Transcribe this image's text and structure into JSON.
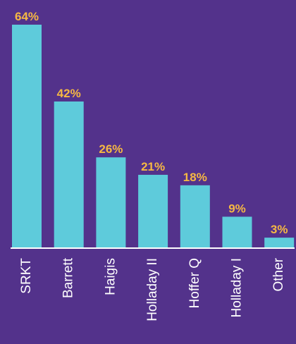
{
  "chart_data": {
    "type": "bar",
    "categories": [
      "SRKT",
      "Barrett",
      "Haigis",
      "Holladay II",
      "Hoffer Q",
      "Holladay I",
      "Other"
    ],
    "values": [
      64,
      42,
      26,
      21,
      18,
      9,
      3
    ],
    "value_labels": [
      "64%",
      "42%",
      "26%",
      "21%",
      "18%",
      "9%",
      "3%"
    ],
    "color": "#5ecbdb"
  }
}
